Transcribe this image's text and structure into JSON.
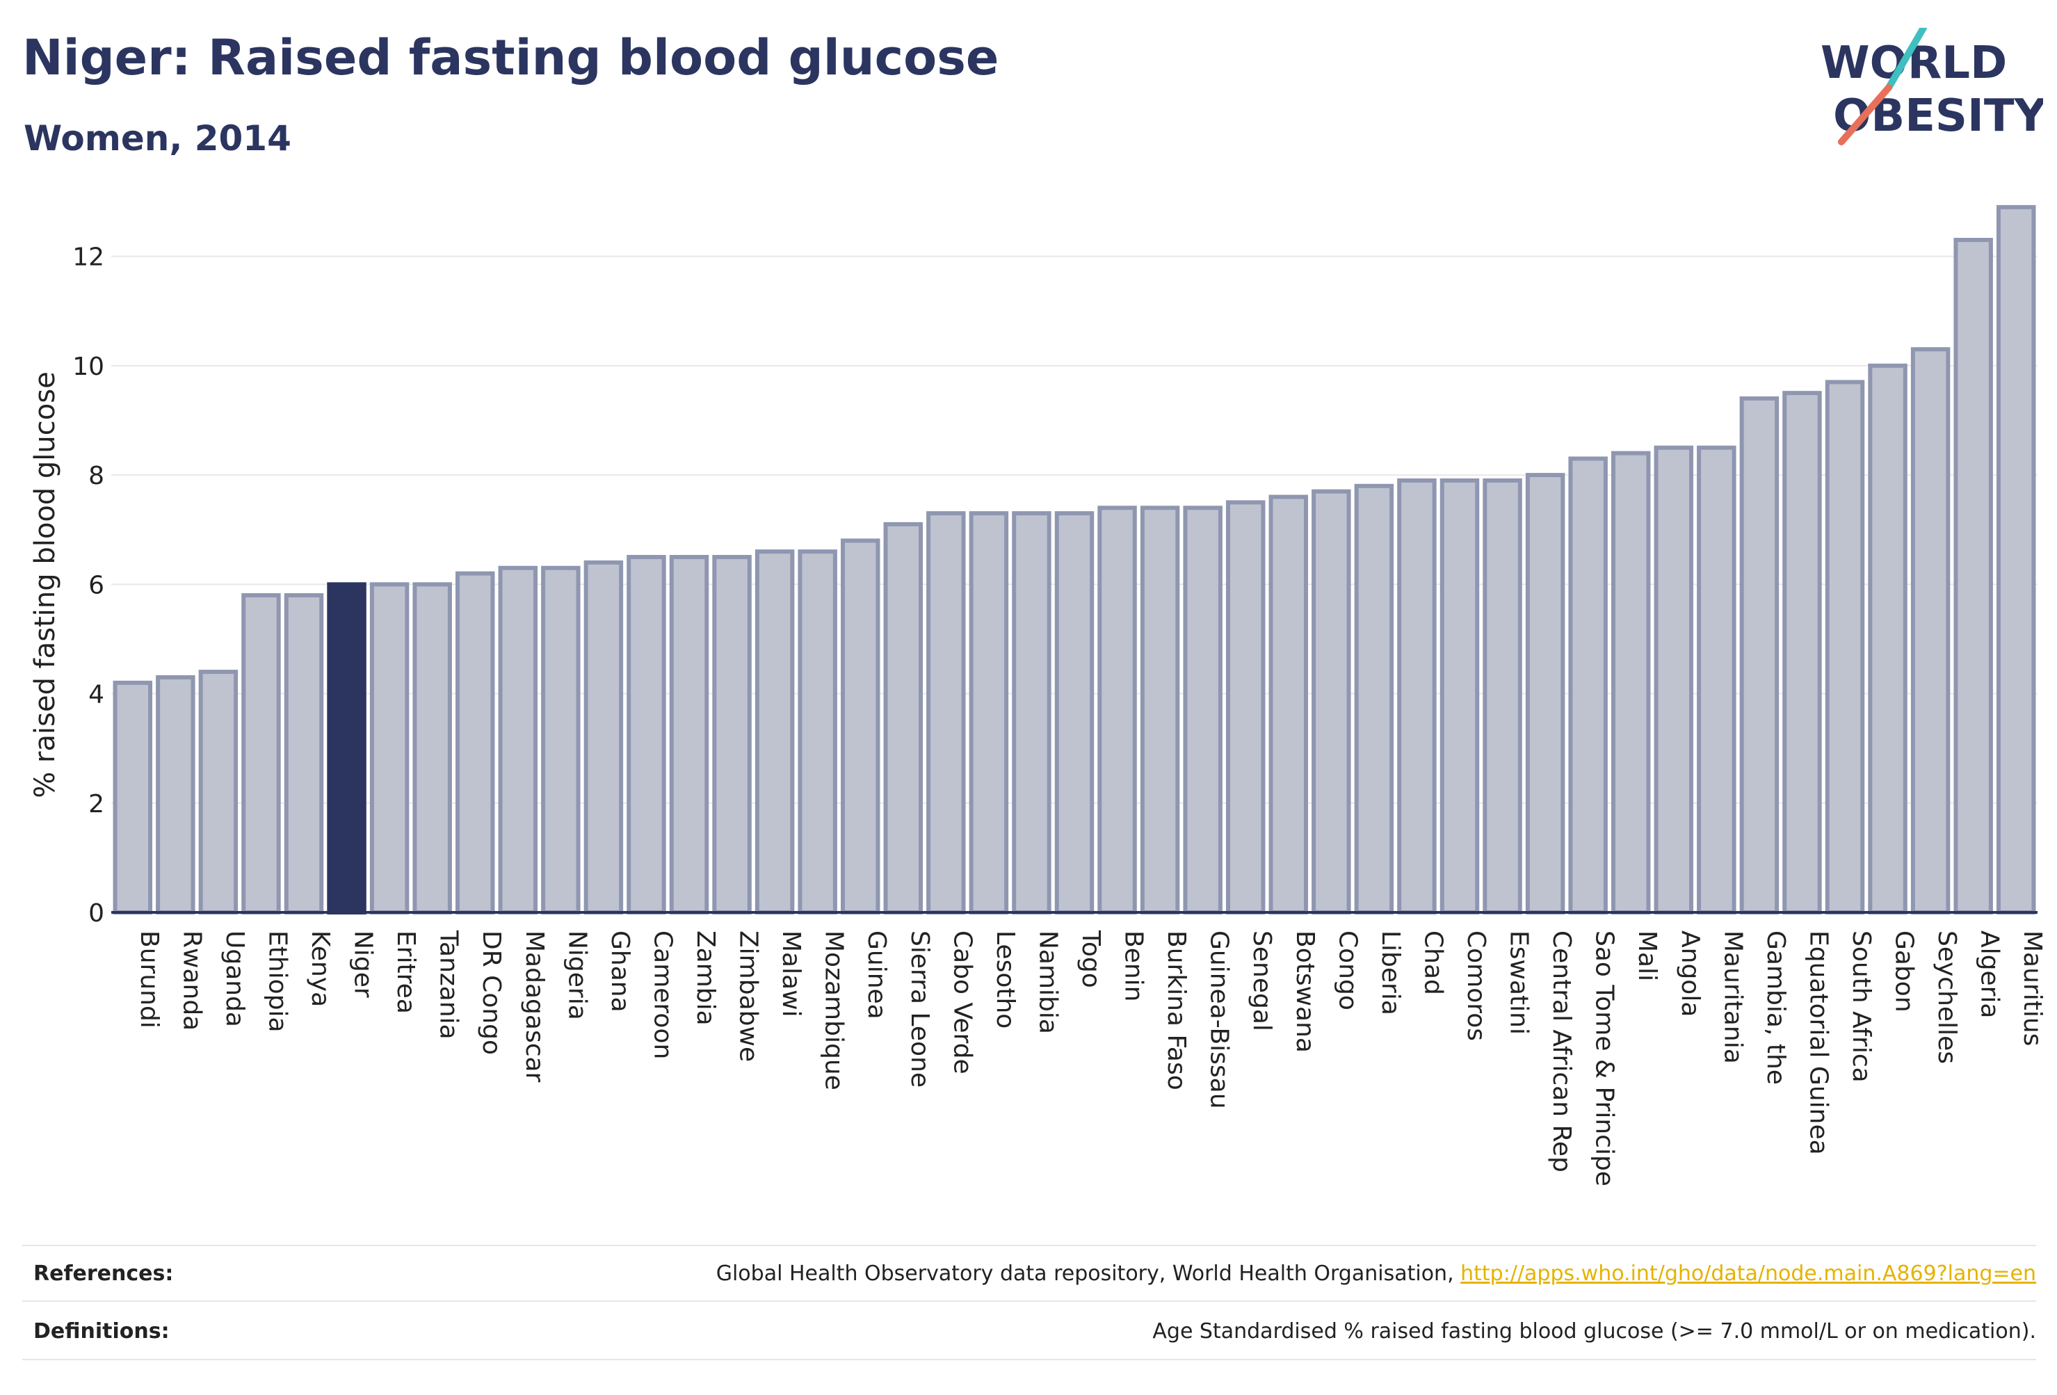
{
  "header": {
    "title": "Niger: Raised fasting blood glucose",
    "subtitle": "Women, 2014"
  },
  "logo": {
    "line1": "WORLD",
    "line2": "OBESITY",
    "accent_teal": "#3fbfbf",
    "accent_coral": "#e8705a"
  },
  "colors": {
    "bar_fill": "#bfc3d0",
    "bar_stroke": "#8f96b0",
    "highlight": "#2b3560",
    "grid": "#e8e8e8"
  },
  "chart_data": {
    "type": "bar",
    "title": "Niger: Raised fasting blood glucose",
    "subtitle": "Women, 2014",
    "xlabel": "",
    "ylabel": "% raised fasting blood glucose",
    "ylim": [
      0,
      13
    ],
    "yticks": [
      0,
      2,
      4,
      6,
      8,
      10,
      12
    ],
    "grid": true,
    "highlight": "Niger",
    "categories": [
      "Burundi",
      "Rwanda",
      "Uganda",
      "Ethiopia",
      "Kenya",
      "Niger",
      "Eritrea",
      "Tanzania",
      "DR Congo",
      "Madagascar",
      "Nigeria",
      "Ghana",
      "Cameroon",
      "Zambia",
      "Zimbabwe",
      "Malawi",
      "Mozambique",
      "Guinea",
      "Sierra Leone",
      "Cabo Verde",
      "Lesotho",
      "Namibia",
      "Togo",
      "Benin",
      "Burkina Faso",
      "Guinea-Bissau",
      "Senegal",
      "Botswana",
      "Congo",
      "Liberia",
      "Chad",
      "Comoros",
      "Eswatini",
      "Central African Rep",
      "Sao Tome & Principe",
      "Mali",
      "Angola",
      "Mauritania",
      "Gambia, the",
      "Equatorial Guinea",
      "South Africa",
      "Gabon",
      "Seychelles",
      "Algeria",
      "Mauritius"
    ],
    "values": [
      4.2,
      4.3,
      4.4,
      5.8,
      5.8,
      6.0,
      6.0,
      6.0,
      6.2,
      6.3,
      6.3,
      6.4,
      6.5,
      6.5,
      6.5,
      6.6,
      6.6,
      6.8,
      7.1,
      7.3,
      7.3,
      7.3,
      7.3,
      7.4,
      7.4,
      7.4,
      7.5,
      7.6,
      7.7,
      7.8,
      7.9,
      7.9,
      7.9,
      8.0,
      8.3,
      8.4,
      8.5,
      8.5,
      9.4,
      9.5,
      9.7,
      10.0,
      10.3,
      12.3,
      12.9
    ]
  },
  "footer": {
    "references_label": "References:",
    "references_text": "Global Health Observatory data repository, World Health Organisation, ",
    "references_link": "http://apps.who.int/gho/data/node.main.A869?lang=en",
    "definitions_label": "Definitions:",
    "definitions_text": "Age Standardised % raised fasting blood glucose (>= 7.0 mmol/L or on medication)."
  }
}
